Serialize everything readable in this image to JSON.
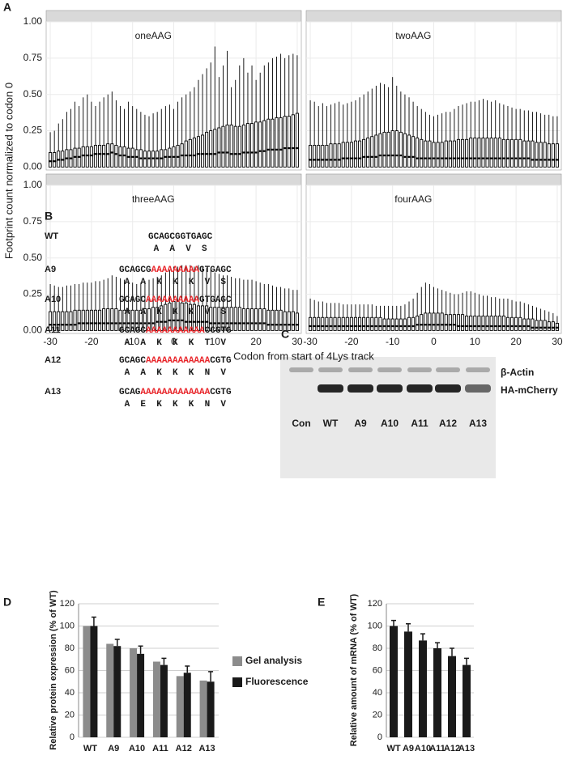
{
  "chart_data": [
    {
      "type": "boxplot",
      "panel": "A",
      "y_label": "Footprint count normalized to codon 0",
      "x_label": "Codon from start of 4Lys track",
      "xlim": [
        -31,
        31
      ],
      "xticks": [
        -30,
        -20,
        -10,
        0,
        10,
        20,
        30
      ],
      "ylim": [
        -0.02,
        1.0
      ],
      "yticks": [
        {
          "value": 0,
          "label": "0.00"
        },
        {
          "value": 0.25,
          "label": "0.25"
        },
        {
          "value": 0.5,
          "label": "0.50"
        },
        {
          "value": 0.75,
          "label": "0.75"
        },
        {
          "value": 1,
          "label": "1.00"
        }
      ],
      "grid": true,
      "x": [
        -30,
        -29,
        -28,
        -27,
        -26,
        -25,
        -24,
        -23,
        -22,
        -21,
        -20,
        -19,
        -18,
        -17,
        -16,
        -15,
        -14,
        -13,
        -12,
        -11,
        -10,
        -9,
        -8,
        -7,
        -6,
        -5,
        -4,
        -3,
        -2,
        -1,
        0,
        1,
        2,
        3,
        4,
        5,
        6,
        7,
        8,
        9,
        10,
        11,
        12,
        13,
        14,
        15,
        16,
        17,
        18,
        19,
        20,
        21,
        22,
        23,
        24,
        25,
        26,
        27,
        28,
        29,
        30
      ],
      "facets": [
        {
          "title": "oneAAG",
          "median": [
            0.04,
            0.04,
            0.05,
            0.05,
            0.06,
            0.06,
            0.07,
            0.07,
            0.08,
            0.08,
            0.08,
            0.09,
            0.09,
            0.09,
            0.09,
            0.1,
            0.09,
            0.08,
            0.08,
            0.07,
            0.07,
            0.07,
            0.06,
            0.06,
            0.06,
            0.06,
            0.06,
            0.06,
            0.07,
            0.07,
            0.07,
            0.07,
            0.08,
            0.08,
            0.08,
            0.08,
            0.09,
            0.09,
            0.09,
            0.09,
            0.09,
            0.1,
            0.1,
            0.1,
            0.09,
            0.09,
            0.09,
            0.1,
            0.1,
            0.1,
            0.1,
            0.11,
            0.11,
            0.12,
            0.12,
            0.12,
            0.12,
            0.13,
            0.13,
            0.13,
            0.13
          ],
          "q3": [
            0.1,
            0.1,
            0.11,
            0.11,
            0.12,
            0.12,
            0.13,
            0.13,
            0.14,
            0.14,
            0.14,
            0.15,
            0.15,
            0.15,
            0.16,
            0.16,
            0.15,
            0.14,
            0.14,
            0.13,
            0.13,
            0.12,
            0.12,
            0.11,
            0.11,
            0.11,
            0.11,
            0.12,
            0.12,
            0.13,
            0.14,
            0.15,
            0.16,
            0.18,
            0.19,
            0.2,
            0.21,
            0.22,
            0.24,
            0.25,
            0.26,
            0.27,
            0.28,
            0.29,
            0.29,
            0.28,
            0.28,
            0.29,
            0.3,
            0.3,
            0.31,
            0.31,
            0.32,
            0.33,
            0.33,
            0.34,
            0.34,
            0.35,
            0.35,
            0.36,
            0.37
          ],
          "upper": [
            0.24,
            0.25,
            0.3,
            0.33,
            0.38,
            0.4,
            0.45,
            0.42,
            0.48,
            0.5,
            0.45,
            0.42,
            0.45,
            0.48,
            0.5,
            0.52,
            0.46,
            0.42,
            0.4,
            0.45,
            0.42,
            0.4,
            0.38,
            0.36,
            0.35,
            0.37,
            0.38,
            0.4,
            0.42,
            0.43,
            0.4,
            0.45,
            0.48,
            0.5,
            0.52,
            0.55,
            0.6,
            0.64,
            0.68,
            0.72,
            0.83,
            0.62,
            0.7,
            0.8,
            0.55,
            0.6,
            0.7,
            0.75,
            0.65,
            0.7,
            0.6,
            0.65,
            0.7,
            0.72,
            0.75,
            0.76,
            0.78,
            0.75,
            0.77,
            0.78,
            0.77
          ]
        },
        {
          "title": "twoAAG",
          "median": [
            0.05,
            0.05,
            0.05,
            0.05,
            0.05,
            0.05,
            0.05,
            0.05,
            0.06,
            0.06,
            0.06,
            0.06,
            0.06,
            0.07,
            0.07,
            0.07,
            0.07,
            0.08,
            0.08,
            0.08,
            0.08,
            0.08,
            0.08,
            0.07,
            0.07,
            0.07,
            0.06,
            0.06,
            0.06,
            0.06,
            0.06,
            0.06,
            0.06,
            0.06,
            0.06,
            0.06,
            0.06,
            0.06,
            0.06,
            0.06,
            0.06,
            0.06,
            0.06,
            0.06,
            0.06,
            0.06,
            0.06,
            0.06,
            0.06,
            0.06,
            0.06,
            0.06,
            0.06,
            0.06,
            0.05,
            0.05,
            0.05,
            0.05,
            0.05,
            0.05,
            0.05
          ],
          "q3": [
            0.15,
            0.15,
            0.15,
            0.15,
            0.15,
            0.16,
            0.16,
            0.16,
            0.17,
            0.17,
            0.17,
            0.18,
            0.18,
            0.19,
            0.2,
            0.21,
            0.22,
            0.23,
            0.24,
            0.24,
            0.25,
            0.25,
            0.24,
            0.23,
            0.22,
            0.21,
            0.2,
            0.19,
            0.18,
            0.18,
            0.17,
            0.17,
            0.17,
            0.18,
            0.18,
            0.18,
            0.19,
            0.19,
            0.19,
            0.2,
            0.2,
            0.2,
            0.2,
            0.2,
            0.2,
            0.2,
            0.2,
            0.19,
            0.19,
            0.19,
            0.19,
            0.19,
            0.18,
            0.18,
            0.18,
            0.17,
            0.17,
            0.17,
            0.16,
            0.16,
            0.16
          ],
          "upper": [
            0.46,
            0.45,
            0.42,
            0.44,
            0.42,
            0.43,
            0.44,
            0.45,
            0.43,
            0.44,
            0.45,
            0.46,
            0.48,
            0.5,
            0.52,
            0.54,
            0.56,
            0.58,
            0.57,
            0.55,
            0.62,
            0.56,
            0.52,
            0.5,
            0.48,
            0.45,
            0.42,
            0.4,
            0.38,
            0.36,
            0.35,
            0.36,
            0.37,
            0.38,
            0.38,
            0.4,
            0.42,
            0.43,
            0.44,
            0.45,
            0.45,
            0.46,
            0.47,
            0.46,
            0.45,
            0.46,
            0.44,
            0.43,
            0.42,
            0.41,
            0.4,
            0.4,
            0.39,
            0.39,
            0.38,
            0.38,
            0.37,
            0.36,
            0.36,
            0.35,
            0.35
          ]
        },
        {
          "title": "threeAAG",
          "median": [
            0.04,
            0.04,
            0.04,
            0.04,
            0.04,
            0.04,
            0.04,
            0.05,
            0.05,
            0.05,
            0.05,
            0.05,
            0.05,
            0.05,
            0.05,
            0.05,
            0.05,
            0.05,
            0.05,
            0.05,
            0.05,
            0.05,
            0.05,
            0.05,
            0.05,
            0.05,
            0.06,
            0.06,
            0.06,
            0.07,
            0.07,
            0.07,
            0.07,
            0.06,
            0.06,
            0.06,
            0.06,
            0.06,
            0.06,
            0.05,
            0.05,
            0.05,
            0.05,
            0.05,
            0.05,
            0.05,
            0.05,
            0.05,
            0.05,
            0.05,
            0.05,
            0.05,
            0.05,
            0.04,
            0.04,
            0.04,
            0.04,
            0.04,
            0.04,
            0.04,
            0.04
          ],
          "q3": [
            0.13,
            0.13,
            0.13,
            0.13,
            0.13,
            0.13,
            0.14,
            0.14,
            0.14,
            0.14,
            0.14,
            0.14,
            0.14,
            0.15,
            0.15,
            0.15,
            0.15,
            0.14,
            0.14,
            0.14,
            0.14,
            0.14,
            0.14,
            0.15,
            0.15,
            0.16,
            0.16,
            0.17,
            0.18,
            0.19,
            0.2,
            0.2,
            0.19,
            0.19,
            0.18,
            0.18,
            0.17,
            0.17,
            0.17,
            0.16,
            0.16,
            0.16,
            0.16,
            0.16,
            0.16,
            0.16,
            0.16,
            0.15,
            0.15,
            0.15,
            0.15,
            0.15,
            0.15,
            0.14,
            0.14,
            0.14,
            0.14,
            0.13,
            0.13,
            0.13,
            0.12
          ],
          "upper": [
            0.32,
            0.31,
            0.3,
            0.3,
            0.31,
            0.31,
            0.32,
            0.32,
            0.33,
            0.33,
            0.33,
            0.34,
            0.34,
            0.35,
            0.36,
            0.38,
            0.37,
            0.36,
            0.35,
            0.34,
            0.33,
            0.32,
            0.33,
            0.34,
            0.35,
            0.36,
            0.37,
            0.38,
            0.4,
            0.42,
            0.44,
            0.44,
            0.45,
            0.45,
            0.45,
            0.44,
            0.45,
            0.44,
            0.43,
            0.42,
            0.4,
            0.39,
            0.38,
            0.38,
            0.37,
            0.36,
            0.36,
            0.35,
            0.35,
            0.35,
            0.34,
            0.33,
            0.32,
            0.32,
            0.31,
            0.3,
            0.3,
            0.29,
            0.29,
            0.28,
            0.28
          ]
        },
        {
          "title": "fourAAG",
          "median": [
            0.03,
            0.03,
            0.03,
            0.03,
            0.03,
            0.03,
            0.03,
            0.03,
            0.03,
            0.03,
            0.03,
            0.03,
            0.03,
            0.03,
            0.03,
            0.03,
            0.03,
            0.03,
            0.03,
            0.03,
            0.03,
            0.03,
            0.03,
            0.03,
            0.03,
            0.03,
            0.04,
            0.04,
            0.04,
            0.04,
            0.04,
            0.04,
            0.04,
            0.04,
            0.04,
            0.04,
            0.03,
            0.03,
            0.03,
            0.03,
            0.03,
            0.03,
            0.03,
            0.03,
            0.03,
            0.03,
            0.03,
            0.03,
            0.03,
            0.03,
            0.03,
            0.03,
            0.03,
            0.03,
            0.02,
            0.02,
            0.02,
            0.02,
            0.02,
            0.02,
            0.02
          ],
          "q3": [
            0.09,
            0.09,
            0.09,
            0.09,
            0.09,
            0.09,
            0.09,
            0.09,
            0.09,
            0.09,
            0.09,
            0.09,
            0.09,
            0.09,
            0.09,
            0.09,
            0.09,
            0.09,
            0.08,
            0.08,
            0.08,
            0.08,
            0.08,
            0.08,
            0.09,
            0.09,
            0.1,
            0.11,
            0.12,
            0.12,
            0.12,
            0.12,
            0.12,
            0.11,
            0.11,
            0.11,
            0.11,
            0.11,
            0.1,
            0.1,
            0.1,
            0.1,
            0.1,
            0.1,
            0.1,
            0.1,
            0.1,
            0.1,
            0.09,
            0.09,
            0.09,
            0.09,
            0.08,
            0.08,
            0.08,
            0.07,
            0.07,
            0.07,
            0.06,
            0.06,
            0.05
          ],
          "upper": [
            0.22,
            0.21,
            0.2,
            0.2,
            0.19,
            0.19,
            0.19,
            0.19,
            0.18,
            0.18,
            0.18,
            0.18,
            0.18,
            0.18,
            0.18,
            0.18,
            0.17,
            0.17,
            0.17,
            0.17,
            0.17,
            0.17,
            0.17,
            0.18,
            0.2,
            0.22,
            0.26,
            0.3,
            0.33,
            0.32,
            0.3,
            0.29,
            0.28,
            0.27,
            0.26,
            0.25,
            0.25,
            0.26,
            0.27,
            0.27,
            0.26,
            0.25,
            0.24,
            0.24,
            0.23,
            0.23,
            0.22,
            0.22,
            0.22,
            0.21,
            0.2,
            0.2,
            0.19,
            0.18,
            0.17,
            0.16,
            0.15,
            0.14,
            0.13,
            0.12,
            0.1
          ]
        }
      ]
    },
    {
      "type": "bar",
      "panel": "D",
      "y_label": "Relative protein expression (% of WT)",
      "categories": [
        "WT",
        "A9",
        "A10",
        "A11",
        "A12",
        "A13"
      ],
      "series": [
        {
          "name": "Gel analysis",
          "color": "#8c8c8c",
          "values": [
            100,
            84,
            80,
            68,
            55,
            51
          ]
        },
        {
          "name": "Fluorescence",
          "color": "#1a1a1a",
          "values": [
            100,
            82,
            75,
            65,
            58,
            50
          ],
          "errors": [
            8,
            6,
            7,
            6,
            6,
            9
          ]
        }
      ],
      "ylim": [
        0,
        120
      ],
      "yticks": [
        0,
        20,
        40,
        60,
        80,
        100,
        120
      ],
      "grid": true,
      "legend": "right"
    },
    {
      "type": "bar",
      "panel": "E",
      "y_label": "Relative amount of mRNA (% of WT)",
      "categories": [
        "WT",
        "A9",
        "A10",
        "A11",
        "A12",
        "A13"
      ],
      "values": [
        100,
        95,
        87,
        80,
        73,
        65
      ],
      "errors": [
        5,
        7,
        6,
        5,
        7,
        6
      ],
      "color": "#1a1a1a",
      "ylim": [
        0,
        120
      ],
      "yticks": [
        0,
        20,
        40,
        60,
        80,
        100,
        120
      ],
      "grid": true
    }
  ],
  "sequences": {
    "panel": "B",
    "rows": [
      {
        "label": "WT",
        "prefix": "GCAGCGGTGAGC",
        "repeat": "",
        "suffix": "",
        "aa": [
          "A",
          "A",
          "V",
          "S"
        ]
      },
      {
        "label": "A9",
        "prefix": "GCAGCG",
        "repeat": "AAAAAAAAA",
        "suffix": "GTGAGC",
        "aa": [
          "A",
          "A",
          "K",
          "K",
          "K",
          "V",
          "S"
        ]
      },
      {
        "label": "A10",
        "prefix": "GCAGC",
        "repeat": "AAAAAAAAAA",
        "suffix": "GTGAGC",
        "aa": [
          "A",
          "A",
          "K",
          "K",
          "K",
          "V",
          "S"
        ]
      },
      {
        "label": "A11",
        "prefix": "GCAGC",
        "repeat": "AAAAAAAAAAA",
        "suffix": "CCGTG",
        "aa": [
          "A",
          "A",
          "K",
          "K",
          "K",
          "T",
          "V"
        ]
      },
      {
        "label": "A12",
        "prefix": "GCAGC",
        "repeat": "AAAAAAAAAAAA",
        "suffix": "CGTG",
        "aa": [
          "A",
          "A",
          "K",
          "K",
          "K",
          "N",
          "V"
        ]
      },
      {
        "label": "A13",
        "prefix": "GCAG",
        "repeat": "AAAAAAAAAAAAA",
        "suffix": "CGTG",
        "aa": [
          "A",
          "E",
          "K",
          "K",
          "K",
          "N",
          "V"
        ]
      }
    ]
  },
  "blot": {
    "panel": "C",
    "lanes": [
      "Con",
      "WT",
      "A9",
      "A10",
      "A11",
      "A12",
      "A13"
    ],
    "bands": [
      "β-Actin",
      "HA-mCherry"
    ]
  }
}
